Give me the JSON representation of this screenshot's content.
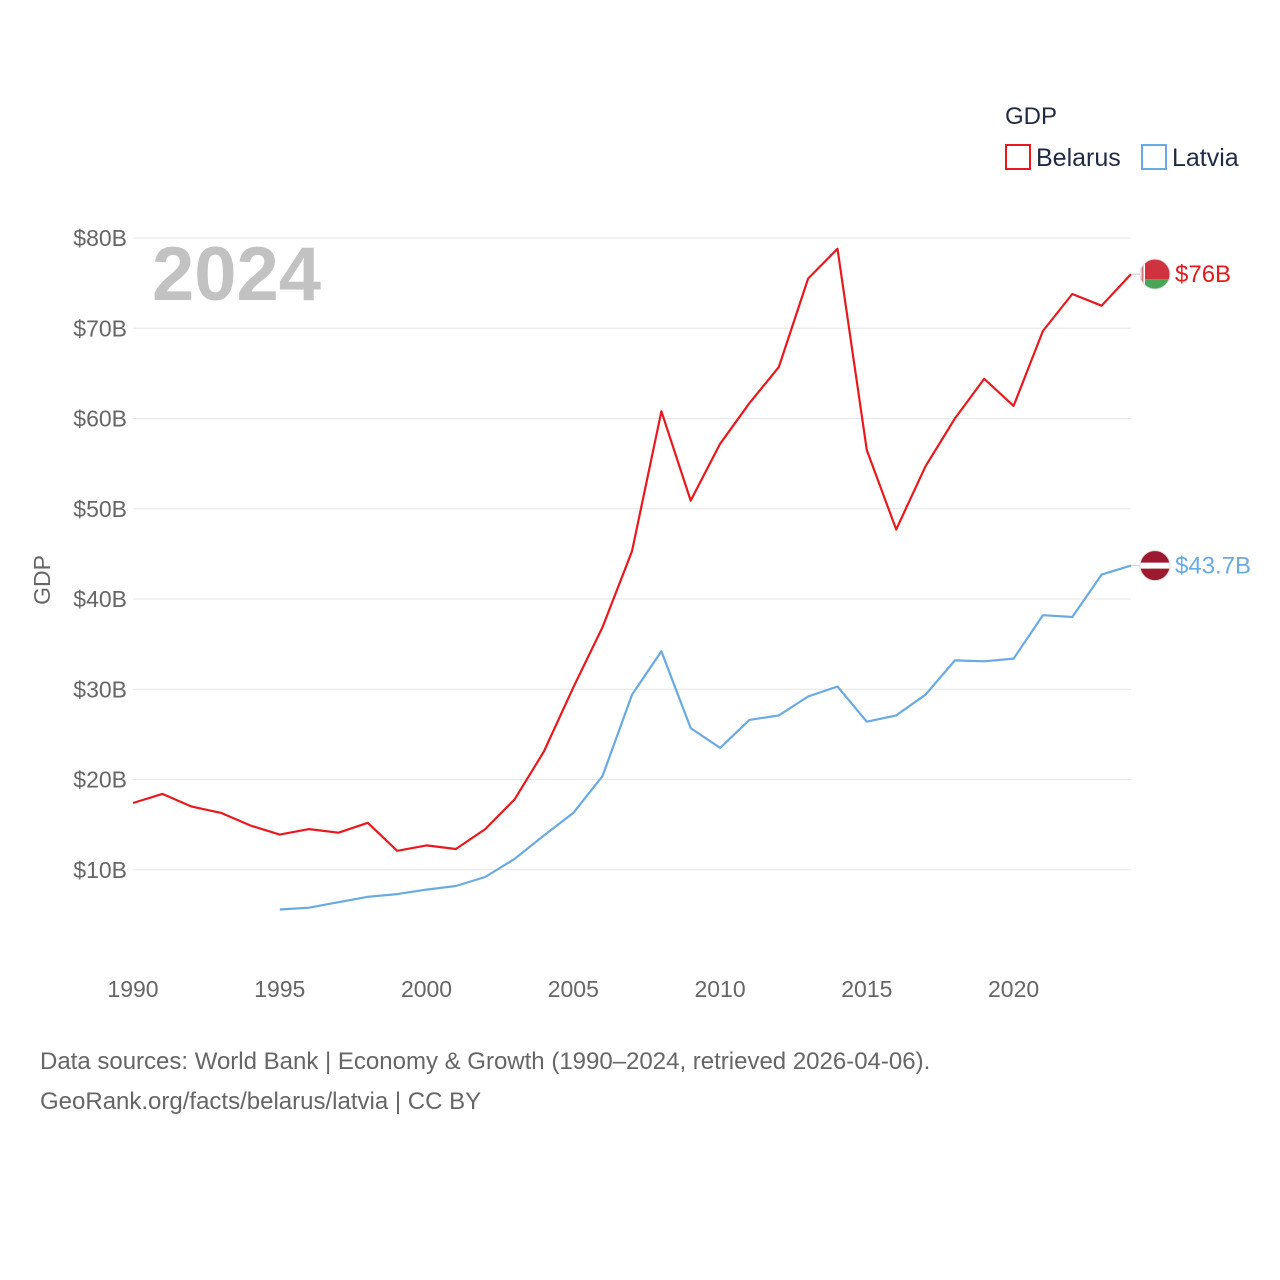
{
  "chart_data": {
    "type": "line",
    "title": "",
    "legend_title": "GDP",
    "legend_position": "top-right",
    "ylabel": "GDP",
    "xlabel": "",
    "year_label": "2024",
    "xlim": [
      1990,
      2024
    ],
    "ylim": [
      0,
      80
    ],
    "y_ticks": [
      10,
      20,
      30,
      40,
      50,
      60,
      70,
      80
    ],
    "y_tick_labels": [
      "$10B",
      "$20B",
      "$30B",
      "$40B",
      "$50B",
      "$60B",
      "$70B",
      "$80B"
    ],
    "x_ticks": [
      1990,
      1995,
      2000,
      2005,
      2010,
      2015,
      2020
    ],
    "x_tick_labels": [
      "1990",
      "1995",
      "2000",
      "2005",
      "2010",
      "2015",
      "2020"
    ],
    "grid": true,
    "series": [
      {
        "name": "Belarus",
        "color": "#e8191e",
        "end_label": "$76B",
        "x": [
          1990,
          1991,
          1992,
          1993,
          1994,
          1995,
          1996,
          1997,
          1998,
          1999,
          2000,
          2001,
          2002,
          2003,
          2004,
          2005,
          2006,
          2007,
          2008,
          2009,
          2010,
          2011,
          2012,
          2013,
          2014,
          2015,
          2016,
          2017,
          2018,
          2019,
          2020,
          2021,
          2022,
          2023,
          2024
        ],
        "values": [
          17.4,
          18.4,
          17.0,
          16.3,
          14.9,
          13.9,
          14.5,
          14.1,
          15.2,
          12.1,
          12.7,
          12.3,
          14.5,
          17.8,
          23.1,
          30.2,
          36.9,
          45.3,
          60.8,
          50.9,
          57.2,
          61.7,
          65.7,
          75.5,
          78.8,
          56.5,
          47.7,
          54.7,
          60.0,
          64.4,
          61.4,
          69.7,
          73.8,
          72.5,
          76.0
        ]
      },
      {
        "name": "Latvia",
        "color": "#6aaae4",
        "end_label": "$43.7B",
        "x": [
          1995,
          1996,
          1997,
          1998,
          1999,
          2000,
          2001,
          2002,
          2003,
          2004,
          2005,
          2006,
          2007,
          2008,
          2009,
          2010,
          2011,
          2012,
          2013,
          2014,
          2015,
          2016,
          2017,
          2018,
          2019,
          2020,
          2021,
          2022,
          2023,
          2024
        ],
        "values": [
          5.6,
          5.8,
          6.4,
          7.0,
          7.3,
          7.8,
          8.2,
          9.2,
          11.2,
          13.8,
          16.3,
          20.4,
          29.4,
          34.2,
          25.7,
          23.5,
          26.6,
          27.1,
          29.2,
          30.3,
          26.4,
          27.1,
          29.4,
          33.2,
          33.1,
          33.4,
          38.2,
          38.0,
          42.7,
          43.7
        ]
      }
    ]
  },
  "source": {
    "line1": "Data sources: World Bank | Economy & Growth (1990–2024, retrieved 2026-04-06).",
    "line2": "GeoRank.org/facts/belarus/latvia | CC BY"
  }
}
